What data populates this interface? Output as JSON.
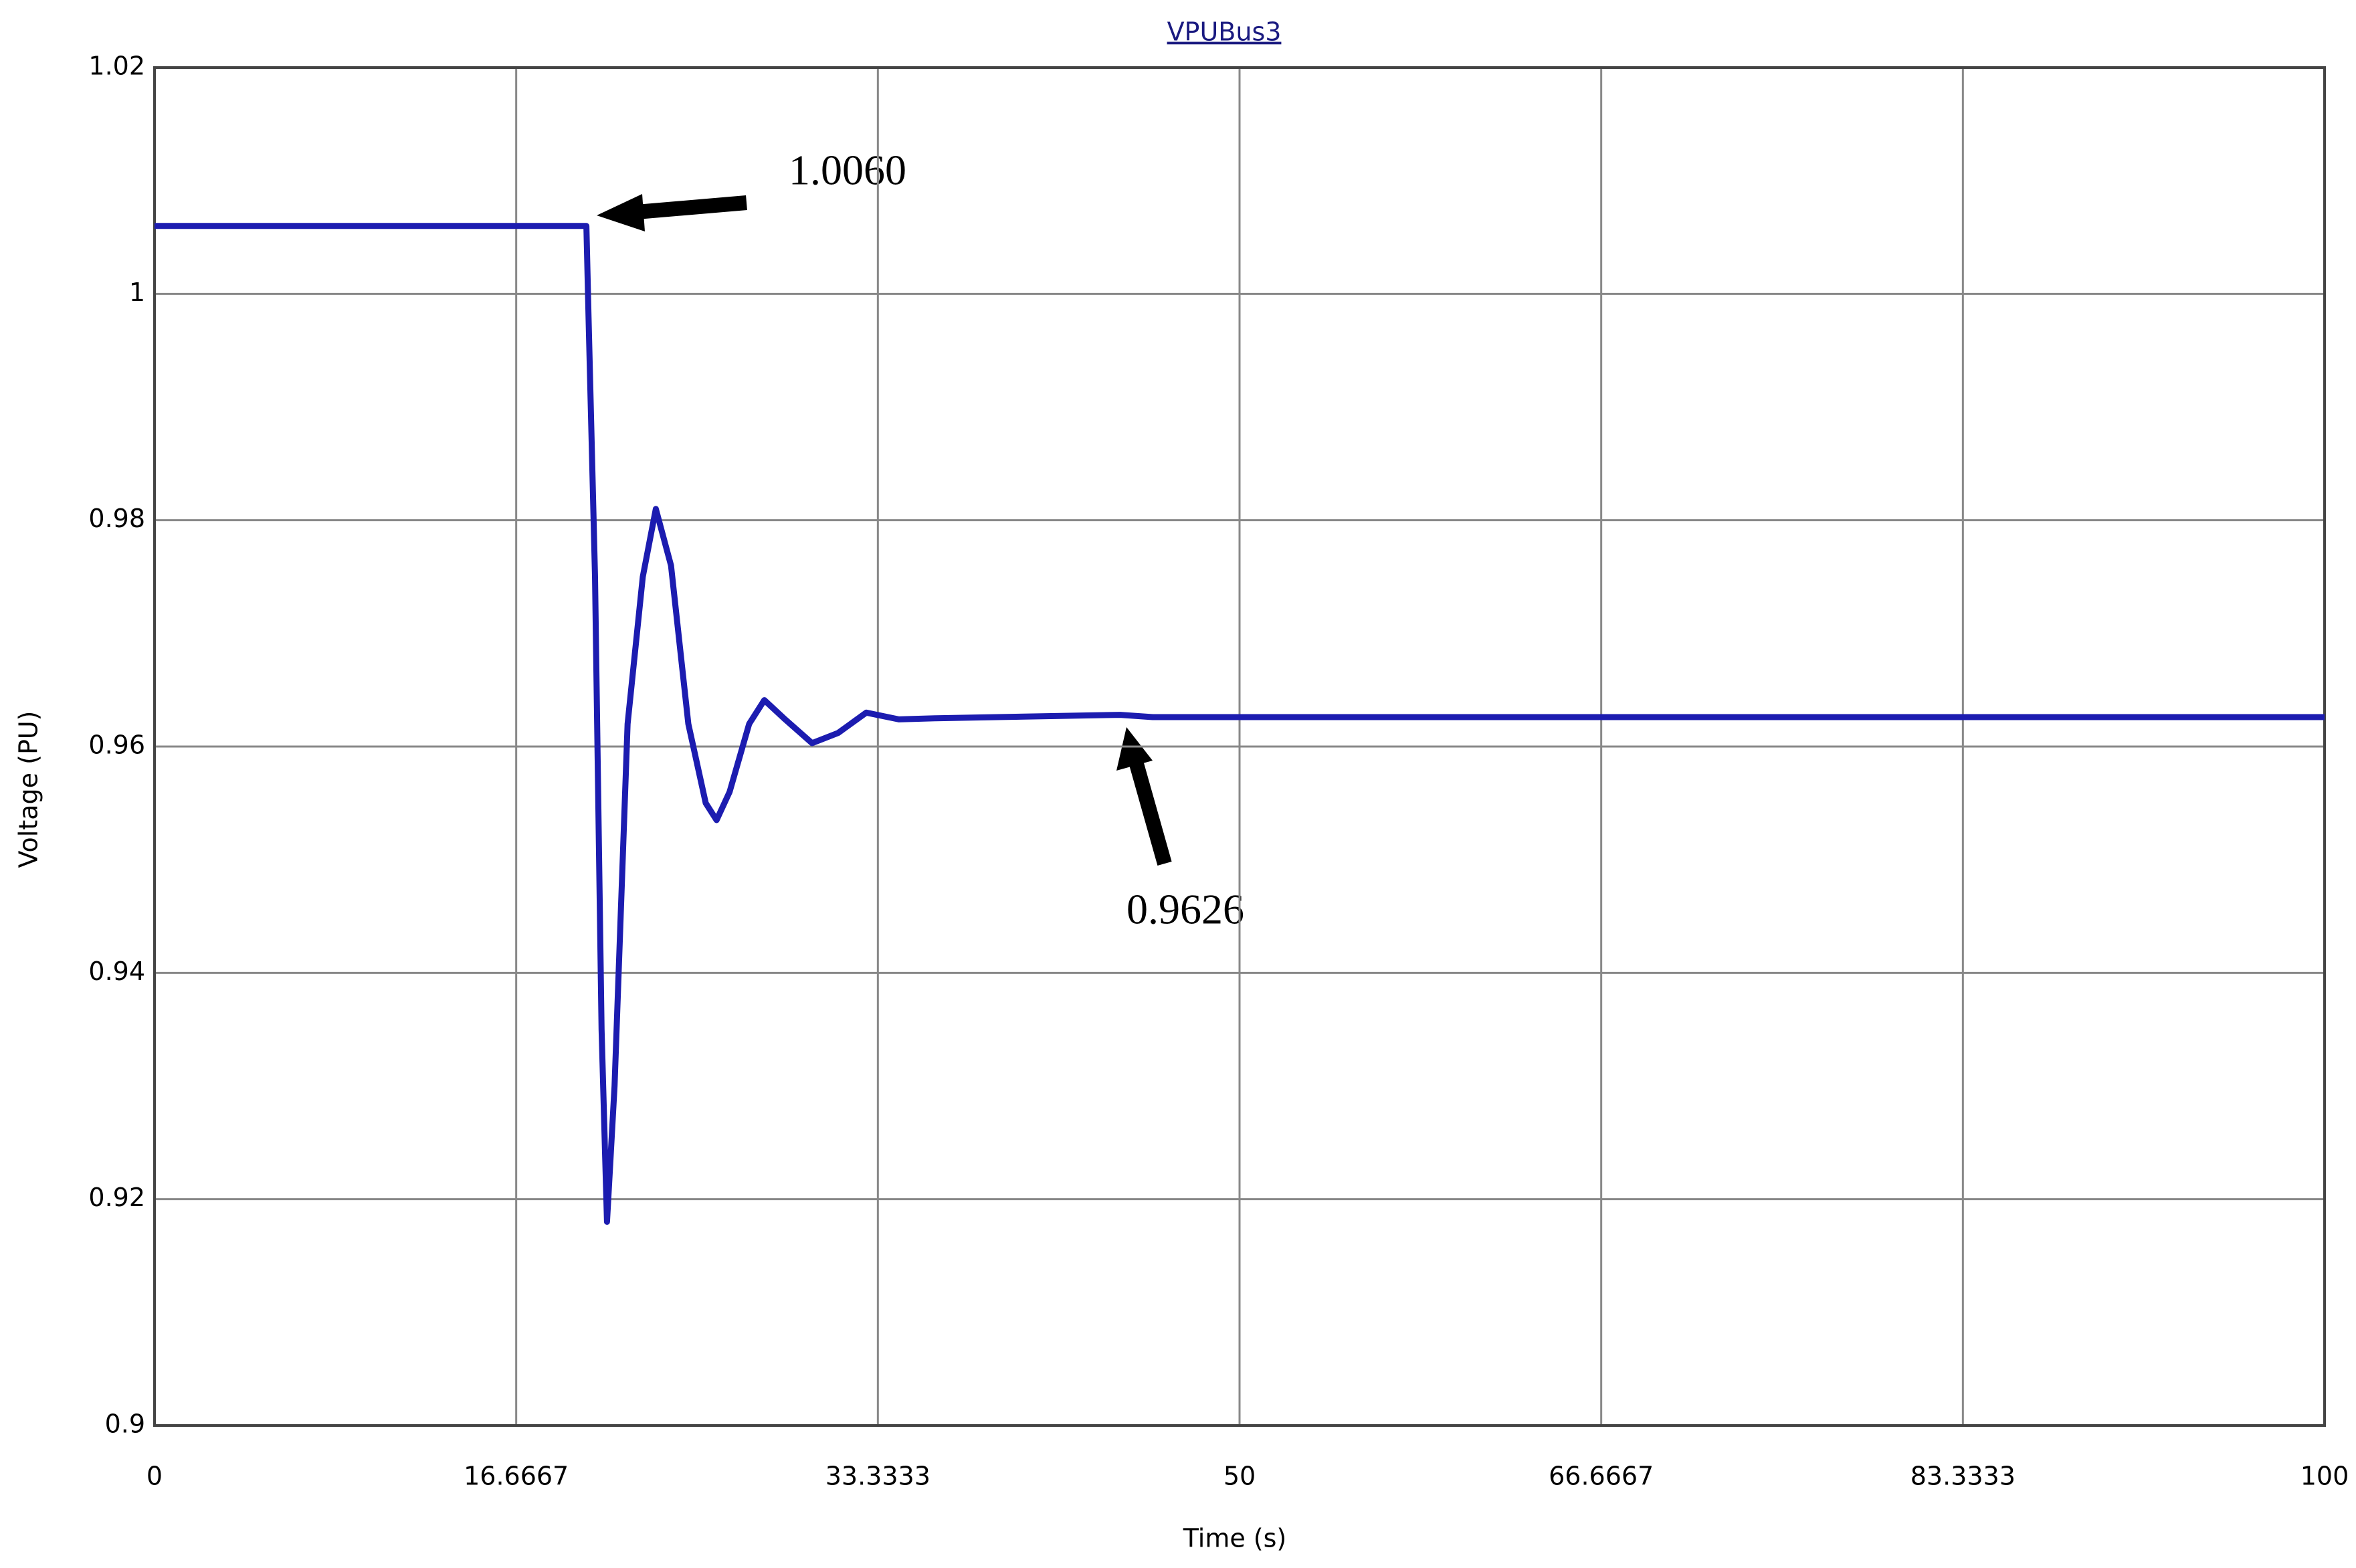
{
  "chart_data": {
    "type": "line",
    "title": "VPUBus3",
    "xlabel": "Time (s)",
    "ylabel": "Voltage (PU)",
    "annotations": [
      "1.0060",
      "0.9626"
    ],
    "x": [
      0,
      19.9,
      20.0,
      20.3,
      20.6,
      20.85,
      21.2,
      21.8,
      22.5,
      23.1,
      23.8,
      24.6,
      25.4,
      25.9,
      26.5,
      27.4,
      28.1,
      29.0,
      30.3,
      31.5,
      32.8,
      34.3,
      36,
      44.5,
      46,
      100
    ],
    "values": [
      1.006,
      1.006,
      0.998,
      0.975,
      0.935,
      0.918,
      0.93,
      0.962,
      0.975,
      0.981,
      0.976,
      0.962,
      0.955,
      0.9535,
      0.956,
      0.962,
      0.9641,
      0.9625,
      0.9603,
      0.9612,
      0.963,
      0.9624,
      0.9625,
      0.9628,
      0.9626,
      0.9626
    ],
    "color": "#1c1cb0",
    "xlim": [
      0,
      100
    ],
    "xticks": [
      0,
      16.6667,
      33.3333,
      50,
      66.6667,
      83.3333,
      100
    ],
    "ylim": [
      0.9,
      1.02
    ],
    "yticks": [
      0.9,
      0.92,
      0.94,
      0.96,
      0.98,
      1,
      1.02
    ],
    "grid": true
  }
}
